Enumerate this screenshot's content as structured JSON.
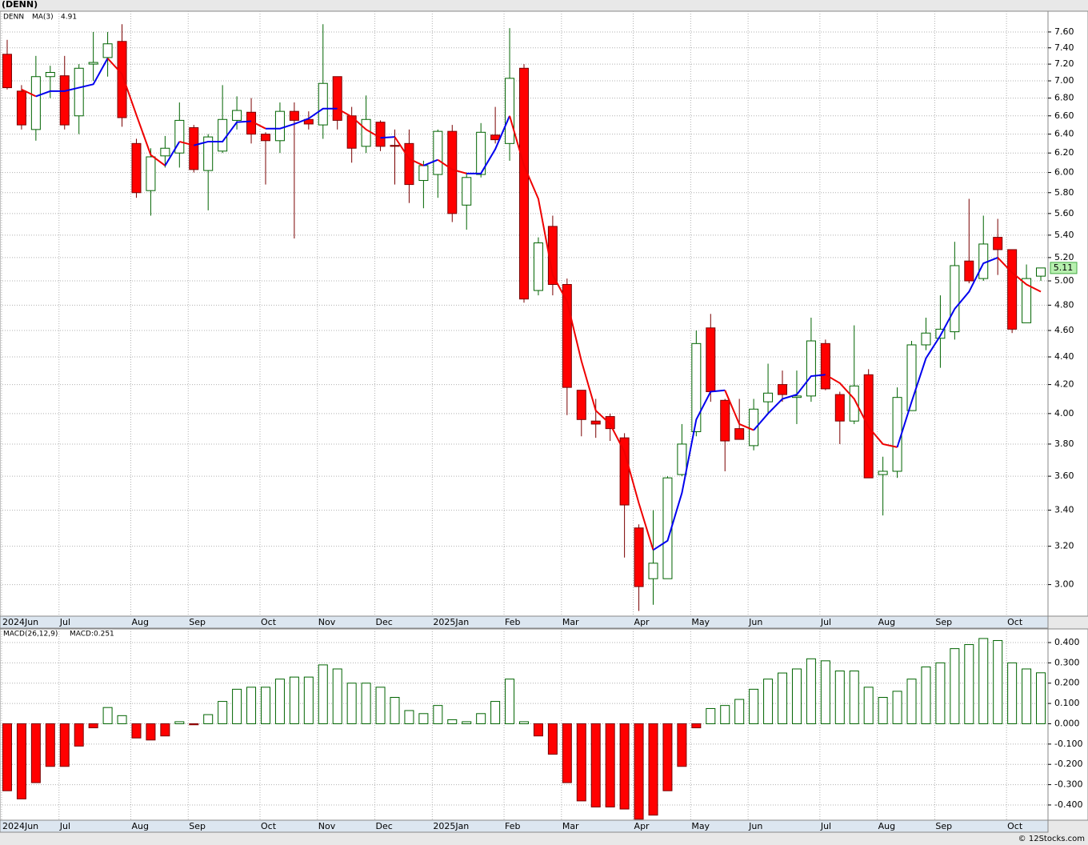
{
  "chart_data": [
    {
      "type": "candlestick",
      "title": "(DENN)",
      "symbol": "DENN",
      "log_scale": true,
      "grid": true,
      "categories": [
        "2024Jun",
        null,
        null,
        null,
        "Jul",
        null,
        null,
        null,
        null,
        "Aug",
        null,
        null,
        null,
        "Sep",
        null,
        null,
        null,
        null,
        "Oct",
        null,
        null,
        null,
        "Nov",
        null,
        null,
        null,
        "Dec",
        null,
        null,
        null,
        "2025Jan",
        null,
        null,
        null,
        null,
        "Feb",
        null,
        null,
        null,
        "Mar",
        null,
        null,
        null,
        null,
        "Apr",
        null,
        null,
        null,
        "May",
        null,
        null,
        null,
        "Jun",
        null,
        null,
        null,
        null,
        "Jul",
        null,
        null,
        null,
        "Aug",
        null,
        null,
        null,
        "Sep",
        null,
        null,
        null,
        null,
        "Oct",
        null,
        null
      ],
      "open": [
        7.32,
        6.88,
        6.45,
        7.05,
        7.06,
        6.6,
        7.2,
        7.28,
        7.48,
        6.3,
        5.82,
        6.17,
        6.2,
        6.47,
        6.02,
        6.22,
        6.55,
        6.64,
        6.4,
        6.33,
        6.65,
        6.56,
        6.5,
        7.05,
        6.6,
        6.27,
        6.53,
        6.28,
        6.3,
        5.92,
        5.98,
        6.43,
        5.68,
        5.98,
        6.39,
        6.3,
        7.15,
        4.92,
        5.48,
        4.97,
        4.16,
        3.95,
        3.98,
        3.84,
        3.3,
        3.03,
        3.03,
        3.61,
        3.88,
        4.62,
        4.09,
        3.9,
        3.79,
        4.08,
        4.2,
        4.11,
        4.12,
        4.5,
        4.13,
        3.95,
        4.27,
        3.61,
        3.63,
        4.02,
        4.49,
        4.54,
        4.59,
        5.17,
        5.02,
        5.38,
        5.27,
        4.66,
        5.04
      ],
      "high": [
        7.5,
        6.95,
        7.3,
        7.18,
        7.3,
        7.2,
        7.6,
        7.6,
        7.7,
        6.35,
        6.25,
        6.38,
        6.75,
        6.5,
        6.4,
        6.95,
        6.82,
        6.8,
        6.42,
        6.75,
        6.75,
        6.65,
        7.7,
        7.05,
        6.7,
        6.83,
        6.55,
        6.45,
        6.45,
        6.12,
        6.45,
        6.5,
        6.0,
        6.52,
        6.7,
        7.65,
        7.2,
        5.38,
        5.58,
        5.02,
        4.16,
        4.1,
        4.0,
        3.87,
        3.32,
        3.4,
        3.6,
        3.93,
        4.6,
        4.73,
        4.1,
        4.1,
        4.1,
        4.35,
        4.3,
        4.3,
        4.7,
        4.53,
        4.15,
        4.64,
        4.31,
        3.72,
        4.18,
        4.52,
        4.7,
        4.88,
        5.34,
        5.74,
        5.58,
        5.55,
        5.27,
        5.14,
        5.11
      ],
      "low": [
        6.9,
        6.45,
        6.33,
        6.8,
        6.45,
        6.4,
        7.0,
        7.05,
        6.48,
        5.75,
        5.58,
        6.05,
        6.05,
        6.0,
        5.63,
        6.2,
        6.45,
        6.3,
        5.88,
        6.2,
        5.37,
        6.45,
        6.35,
        6.45,
        6.1,
        6.2,
        6.22,
        5.88,
        5.7,
        5.65,
        5.75,
        5.52,
        5.45,
        5.95,
        6.3,
        6.12,
        4.82,
        4.88,
        4.88,
        3.99,
        3.85,
        3.84,
        3.82,
        3.14,
        2.87,
        2.9,
        3.03,
        3.6,
        3.85,
        4.08,
        3.63,
        3.83,
        3.76,
        4.0,
        4.08,
        3.93,
        4.08,
        4.16,
        3.8,
        3.93,
        3.59,
        3.37,
        3.59,
        4.02,
        4.45,
        4.32,
        4.53,
        4.98,
        5.0,
        5.05,
        4.58,
        4.66,
        5.0
      ],
      "close": [
        6.92,
        6.5,
        7.05,
        7.1,
        6.5,
        7.15,
        7.22,
        7.45,
        6.58,
        5.8,
        6.16,
        6.25,
        6.55,
        6.03,
        6.37,
        6.56,
        6.66,
        6.4,
        6.33,
        6.65,
        6.55,
        6.51,
        6.97,
        6.55,
        6.25,
        6.56,
        6.27,
        6.27,
        5.88,
        6.07,
        6.43,
        5.6,
        5.95,
        6.42,
        6.34,
        7.03,
        4.85,
        5.33,
        4.97,
        4.18,
        3.96,
        3.93,
        3.9,
        3.43,
        2.99,
        3.11,
        3.59,
        3.8,
        4.5,
        4.15,
        3.82,
        3.83,
        4.03,
        4.14,
        4.13,
        4.12,
        4.52,
        4.17,
        3.95,
        4.19,
        3.59,
        3.63,
        4.11,
        4.49,
        4.58,
        4.61,
        5.13,
        5.0,
        5.32,
        5.27,
        4.61,
        5.02,
        5.11
      ],
      "ma": {
        "name": "MA(3)",
        "rising_color": "#0000ee",
        "falling_color": "#ee0000",
        "values": [
          null,
          6.9,
          6.82,
          6.88,
          6.88,
          6.92,
          6.96,
          7.27,
          7.08,
          6.61,
          6.18,
          6.07,
          6.32,
          6.28,
          6.32,
          6.32,
          6.53,
          6.54,
          6.46,
          6.46,
          6.51,
          6.57,
          6.68,
          6.68,
          6.59,
          6.45,
          6.36,
          6.37,
          6.14,
          6.07,
          6.13,
          6.03,
          5.99,
          5.99,
          6.24,
          6.6,
          6.07,
          5.74,
          5.05,
          4.83,
          4.37,
          4.02,
          3.93,
          3.75,
          3.44,
          3.18,
          3.23,
          3.5,
          3.96,
          4.15,
          4.16,
          3.93,
          3.89,
          4.0,
          4.1,
          4.13,
          4.26,
          4.27,
          4.21,
          4.1,
          3.91,
          3.8,
          3.78,
          4.08,
          4.39,
          4.56,
          4.77,
          4.91,
          5.15,
          5.2,
          5.07,
          4.97,
          4.91
        ]
      },
      "up_color": "#006400",
      "down_color": "#ff0000",
      "ylim": [
        2.845,
        7.87
      ],
      "yticks": [
        {
          "value": 3.0,
          "label": "3.00"
        },
        {
          "value": 3.2,
          "label": "3.20"
        },
        {
          "value": 3.4,
          "label": "3.40"
        },
        {
          "value": 3.6,
          "label": "3.60"
        },
        {
          "value": 3.8,
          "label": "3.80"
        },
        {
          "value": 4.0,
          "label": "4.00"
        },
        {
          "value": 4.2,
          "label": "4.20"
        },
        {
          "value": 4.4,
          "label": "4.40"
        },
        {
          "value": 4.6,
          "label": "4.60"
        },
        {
          "value": 4.8,
          "label": "4.80"
        },
        {
          "value": 5.0,
          "label": "5.00"
        },
        {
          "value": 5.2,
          "label": "5.20"
        },
        {
          "value": 5.4,
          "label": "5.40"
        },
        {
          "value": 5.6,
          "label": "5.60"
        },
        {
          "value": 5.8,
          "label": "5.80"
        },
        {
          "value": 6.0,
          "label": "6.00"
        },
        {
          "value": 6.2,
          "label": "6.20"
        },
        {
          "value": 6.4,
          "label": "6.40"
        },
        {
          "value": 6.6,
          "label": "6.60"
        },
        {
          "value": 6.8,
          "label": "6.80"
        },
        {
          "value": 7.0,
          "label": "7.00"
        },
        {
          "value": 7.2,
          "label": "7.20"
        },
        {
          "value": 7.4,
          "label": "7.40"
        },
        {
          "value": 7.6,
          "label": "7.60"
        }
      ]
    },
    {
      "type": "bar",
      "title": "MACD(26,12,9)",
      "value_name": "MACD:",
      "grid": true,
      "values": [
        -0.33,
        -0.37,
        -0.29,
        -0.21,
        -0.21,
        -0.11,
        -0.02,
        0.08,
        0.04,
        -0.07,
        -0.08,
        -0.06,
        0.01,
        -0.005,
        0.045,
        0.11,
        0.17,
        0.18,
        0.18,
        0.22,
        0.23,
        0.23,
        0.29,
        0.27,
        0.2,
        0.2,
        0.18,
        0.13,
        0.065,
        0.05,
        0.09,
        0.02,
        0.01,
        0.05,
        0.11,
        0.22,
        0.01,
        -0.06,
        -0.15,
        -0.29,
        -0.38,
        -0.41,
        -0.41,
        -0.42,
        -0.47,
        -0.45,
        -0.33,
        -0.21,
        -0.02,
        0.075,
        0.09,
        0.12,
        0.17,
        0.22,
        0.25,
        0.27,
        0.32,
        0.31,
        0.26,
        0.26,
        0.18,
        0.13,
        0.16,
        0.22,
        0.28,
        0.3,
        0.37,
        0.39,
        0.42,
        0.41,
        0.3,
        0.27,
        0.251
      ],
      "positive_color": "#006400",
      "negative_color": "#ff0000",
      "ylim": [
        -0.475,
        0.467
      ],
      "yticks": [
        {
          "value": -0.4,
          "label": "-0.400"
        },
        {
          "value": -0.3,
          "label": "-0.300"
        },
        {
          "value": -0.2,
          "label": "-0.200"
        },
        {
          "value": -0.1,
          "label": "-0.100"
        },
        {
          "value": 0,
          "label": "0.000"
        },
        {
          "value": 0.1,
          "label": "0.100"
        },
        {
          "value": 0.2,
          "label": "0.200"
        },
        {
          "value": 0.3,
          "label": "0.300"
        },
        {
          "value": 0.4,
          "label": "0.400"
        }
      ]
    }
  ],
  "footer": "© 12Stocks.com"
}
